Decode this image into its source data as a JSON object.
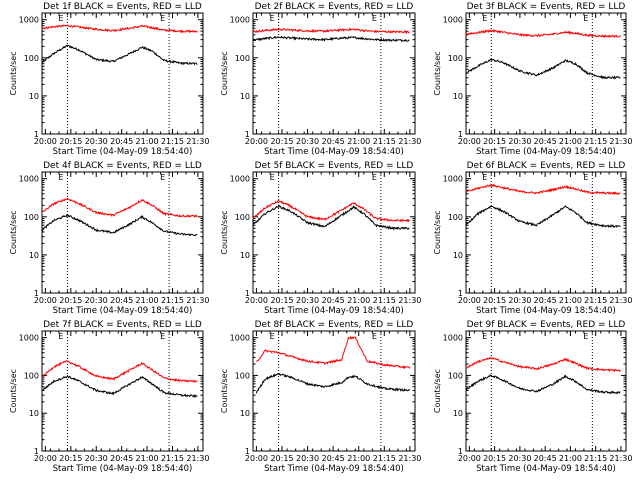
{
  "figure": {
    "xlabel": "Start Time (04-May-09 18:54:40)",
    "ylabel": "Counts/sec",
    "x_ticks": [
      "20:00",
      "20:15",
      "20:30",
      "20:45",
      "21:00",
      "21:15",
      "21:30"
    ],
    "y_ticks": [
      "1",
      "10",
      "100",
      "1000"
    ],
    "marker": "E"
  },
  "chart_data": [
    {
      "type": "line",
      "title": "Det 1f BLACK = Events, RED = LLD",
      "xlabel": "Start Time (04-May-09 18:54:40)",
      "ylabel": "Counts/sec",
      "xlim": [
        "19:58",
        "21:33"
      ],
      "ylim": [
        1,
        1500
      ],
      "yscale": "log",
      "vlines": [
        "20:13",
        "21:13"
      ],
      "series": [
        {
          "name": "Events",
          "color": "#000000",
          "x": [
            "19:58",
            "20:05",
            "20:13",
            "20:20",
            "20:30",
            "20:40",
            "20:50",
            "20:57",
            "21:03",
            "21:10",
            "21:20",
            "21:30"
          ],
          "y": [
            75,
            130,
            210,
            160,
            90,
            80,
            130,
            190,
            150,
            85,
            72,
            70
          ]
        },
        {
          "name": "LLD",
          "color": "#ff0000",
          "x": [
            "19:58",
            "20:05",
            "20:13",
            "20:20",
            "20:30",
            "20:40",
            "20:50",
            "20:57",
            "21:03",
            "21:10",
            "21:20",
            "21:30"
          ],
          "y": [
            600,
            650,
            700,
            640,
            560,
            520,
            600,
            680,
            620,
            530,
            500,
            490
          ]
        }
      ]
    },
    {
      "type": "line",
      "title": "Det 2f BLACK = Events, RED = LLD",
      "xlabel": "Start Time (04-May-09 18:54:40)",
      "ylabel": "Counts/sec",
      "xlim": [
        "19:58",
        "21:33"
      ],
      "ylim": [
        1,
        1500
      ],
      "yscale": "log",
      "vlines": [
        "20:13",
        "21:13"
      ],
      "series": [
        {
          "name": "Events",
          "color": "#000000",
          "x": [
            "19:58",
            "20:05",
            "20:13",
            "20:20",
            "20:30",
            "20:40",
            "20:50",
            "20:57",
            "21:03",
            "21:10",
            "21:20",
            "21:30"
          ],
          "y": [
            290,
            320,
            350,
            330,
            310,
            300,
            330,
            340,
            320,
            300,
            290,
            290
          ]
        },
        {
          "name": "LLD",
          "color": "#ff0000",
          "x": [
            "19:58",
            "20:05",
            "20:13",
            "20:20",
            "20:30",
            "20:40",
            "20:50",
            "20:57",
            "21:03",
            "21:10",
            "21:20",
            "21:30"
          ],
          "y": [
            480,
            520,
            560,
            540,
            510,
            500,
            540,
            560,
            520,
            490,
            480,
            480
          ]
        }
      ]
    },
    {
      "type": "line",
      "title": "Det 3f BLACK = Events, RED = LLD",
      "xlabel": "Start Time (04-May-09 18:54:40)",
      "ylabel": "Counts/sec",
      "xlim": [
        "19:58",
        "21:33"
      ],
      "ylim": [
        1,
        1500
      ],
      "yscale": "log",
      "vlines": [
        "20:13",
        "21:13"
      ],
      "series": [
        {
          "name": "Events",
          "color": "#000000",
          "x": [
            "19:58",
            "20:05",
            "20:13",
            "20:20",
            "20:30",
            "20:40",
            "20:50",
            "20:57",
            "21:03",
            "21:10",
            "21:20",
            "21:30"
          ],
          "y": [
            40,
            60,
            90,
            75,
            45,
            35,
            55,
            85,
            70,
            40,
            30,
            30
          ]
        },
        {
          "name": "LLD",
          "color": "#ff0000",
          "x": [
            "19:58",
            "20:05",
            "20:13",
            "20:20",
            "20:30",
            "20:40",
            "20:50",
            "20:57",
            "21:03",
            "21:10",
            "21:20",
            "21:30"
          ],
          "y": [
            420,
            460,
            520,
            470,
            400,
            380,
            420,
            470,
            440,
            390,
            370,
            370
          ]
        }
      ]
    },
    {
      "type": "line",
      "title": "Det 4f BLACK = Events, RED = LLD",
      "xlabel": "Start Time (04-May-09 18:54:40)",
      "ylabel": "Counts/sec",
      "xlim": [
        "19:58",
        "21:33"
      ],
      "ylim": [
        1,
        1500
      ],
      "yscale": "log",
      "vlines": [
        "20:13",
        "21:13"
      ],
      "series": [
        {
          "name": "Events",
          "color": "#000000",
          "x": [
            "19:58",
            "20:05",
            "20:13",
            "20:20",
            "20:30",
            "20:40",
            "20:50",
            "20:57",
            "21:03",
            "21:10",
            "21:20",
            "21:30"
          ],
          "y": [
            45,
            80,
            110,
            80,
            45,
            38,
            65,
            100,
            70,
            42,
            35,
            33
          ]
        },
        {
          "name": "LLD",
          "color": "#ff0000",
          "x": [
            "19:58",
            "20:05",
            "20:13",
            "20:20",
            "20:30",
            "20:40",
            "20:50",
            "20:57",
            "21:03",
            "21:10",
            "21:20",
            "21:30"
          ],
          "y": [
            130,
            220,
            300,
            220,
            130,
            110,
            180,
            280,
            200,
            120,
            105,
            105
          ]
        }
      ]
    },
    {
      "type": "line",
      "title": "Det 5f BLACK = Events, RED = LLD",
      "xlabel": "Start Time (04-May-09 18:54:40)",
      "ylabel": "Counts/sec",
      "xlim": [
        "19:58",
        "21:33"
      ],
      "ylim": [
        1,
        1500
      ],
      "yscale": "log",
      "vlines": [
        "20:13",
        "21:13"
      ],
      "series": [
        {
          "name": "Events",
          "color": "#000000",
          "x": [
            "19:58",
            "20:05",
            "20:13",
            "20:20",
            "20:30",
            "20:40",
            "20:50",
            "20:57",
            "21:03",
            "21:10",
            "21:20",
            "21:30"
          ],
          "y": [
            60,
            120,
            190,
            140,
            70,
            55,
            110,
            180,
            120,
            60,
            50,
            50
          ]
        },
        {
          "name": "LLD",
          "color": "#ff0000",
          "x": [
            "19:58",
            "20:05",
            "20:13",
            "20:20",
            "20:30",
            "20:40",
            "20:50",
            "20:57",
            "21:03",
            "21:10",
            "21:20",
            "21:30"
          ],
          "y": [
            90,
            170,
            260,
            190,
            100,
            85,
            150,
            230,
            160,
            90,
            80,
            80
          ]
        }
      ]
    },
    {
      "type": "line",
      "title": "Det 6f BLACK = Events, RED = LLD",
      "xlabel": "Start Time (04-May-09 18:54:40)",
      "ylabel": "Counts/sec",
      "xlim": [
        "19:58",
        "21:33"
      ],
      "ylim": [
        1,
        1500
      ],
      "yscale": "log",
      "vlines": [
        "20:13",
        "21:13"
      ],
      "series": [
        {
          "name": "Events",
          "color": "#000000",
          "x": [
            "19:58",
            "20:05",
            "20:13",
            "20:20",
            "20:30",
            "20:40",
            "20:50",
            "20:57",
            "21:03",
            "21:10",
            "21:20",
            "21:30"
          ],
          "y": [
            60,
            120,
            190,
            140,
            75,
            60,
            115,
            185,
            130,
            70,
            58,
            56
          ]
        },
        {
          "name": "LLD",
          "color": "#ff0000",
          "x": [
            "19:58",
            "20:05",
            "20:13",
            "20:20",
            "20:30",
            "20:40",
            "20:50",
            "20:57",
            "21:03",
            "21:10",
            "21:20",
            "21:30"
          ],
          "y": [
            450,
            560,
            680,
            580,
            460,
            420,
            520,
            620,
            540,
            440,
            420,
            410
          ]
        }
      ]
    },
    {
      "type": "line",
      "title": "Det 7f BLACK = Events, RED = LLD",
      "xlabel": "Start Time (04-May-09 18:54:40)",
      "ylabel": "Counts/sec",
      "xlim": [
        "19:58",
        "21:33"
      ],
      "ylim": [
        1,
        1500
      ],
      "yscale": "log",
      "vlines": [
        "20:13",
        "21:13"
      ],
      "series": [
        {
          "name": "Events",
          "color": "#000000",
          "x": [
            "19:58",
            "20:05",
            "20:13",
            "20:20",
            "20:30",
            "20:40",
            "20:50",
            "20:57",
            "21:03",
            "21:10",
            "21:20",
            "21:30"
          ],
          "y": [
            40,
            70,
            95,
            70,
            40,
            33,
            60,
            90,
            60,
            35,
            30,
            28
          ]
        },
        {
          "name": "LLD",
          "color": "#ff0000",
          "x": [
            "19:58",
            "20:05",
            "20:13",
            "20:20",
            "20:30",
            "20:40",
            "20:50",
            "20:57",
            "21:03",
            "21:10",
            "21:20",
            "21:30"
          ],
          "y": [
            90,
            170,
            240,
            170,
            95,
            80,
            140,
            210,
            140,
            85,
            72,
            70
          ]
        }
      ]
    },
    {
      "type": "line",
      "title": "Det 8f BLACK = Events, RED = LLD",
      "xlabel": "Start Time (04-May-09 18:54:40)",
      "ylabel": "Counts/sec",
      "xlim": [
        "19:58",
        "21:33"
      ],
      "ylim": [
        1,
        1500
      ],
      "yscale": "log",
      "vlines": [
        "20:13",
        "21:13"
      ],
      "series": [
        {
          "name": "Events",
          "color": "#000000",
          "x": [
            "20:00",
            "20:05",
            "20:13",
            "20:20",
            "20:30",
            "20:40",
            "20:50",
            "20:54",
            "20:58",
            "21:05",
            "21:15",
            "21:30"
          ],
          "y": [
            35,
            80,
            110,
            90,
            60,
            50,
            65,
            90,
            95,
            60,
            45,
            40
          ]
        },
        {
          "name": "LLD",
          "color": "#ff0000",
          "x": [
            "20:00",
            "20:05",
            "20:13",
            "20:20",
            "20:30",
            "20:40",
            "20:50",
            "20:54",
            "20:58",
            "21:05",
            "21:15",
            "21:30"
          ],
          "y": [
            220,
            450,
            400,
            320,
            240,
            210,
            260,
            1000,
            1000,
            240,
            190,
            160
          ]
        }
      ]
    },
    {
      "type": "line",
      "title": "Det 9f BLACK = Events, RED = LLD",
      "xlabel": "Start Time (04-May-09 18:54:40)",
      "ylabel": "Counts/sec",
      "xlim": [
        "19:58",
        "21:33"
      ],
      "ylim": [
        1,
        1500
      ],
      "yscale": "log",
      "vlines": [
        "20:13",
        "21:13"
      ],
      "series": [
        {
          "name": "Events",
          "color": "#000000",
          "x": [
            "19:58",
            "20:05",
            "20:13",
            "20:20",
            "20:30",
            "20:40",
            "20:50",
            "20:57",
            "21:03",
            "21:10",
            "21:20",
            "21:30"
          ],
          "y": [
            42,
            70,
            100,
            75,
            45,
            38,
            60,
            95,
            70,
            42,
            36,
            35
          ]
        },
        {
          "name": "LLD",
          "color": "#ff0000",
          "x": [
            "19:58",
            "20:05",
            "20:13",
            "20:20",
            "20:30",
            "20:40",
            "20:50",
            "20:57",
            "21:03",
            "21:10",
            "21:20",
            "21:30"
          ],
          "y": [
            160,
            230,
            290,
            230,
            170,
            150,
            200,
            270,
            210,
            155,
            140,
            135
          ]
        }
      ]
    }
  ]
}
